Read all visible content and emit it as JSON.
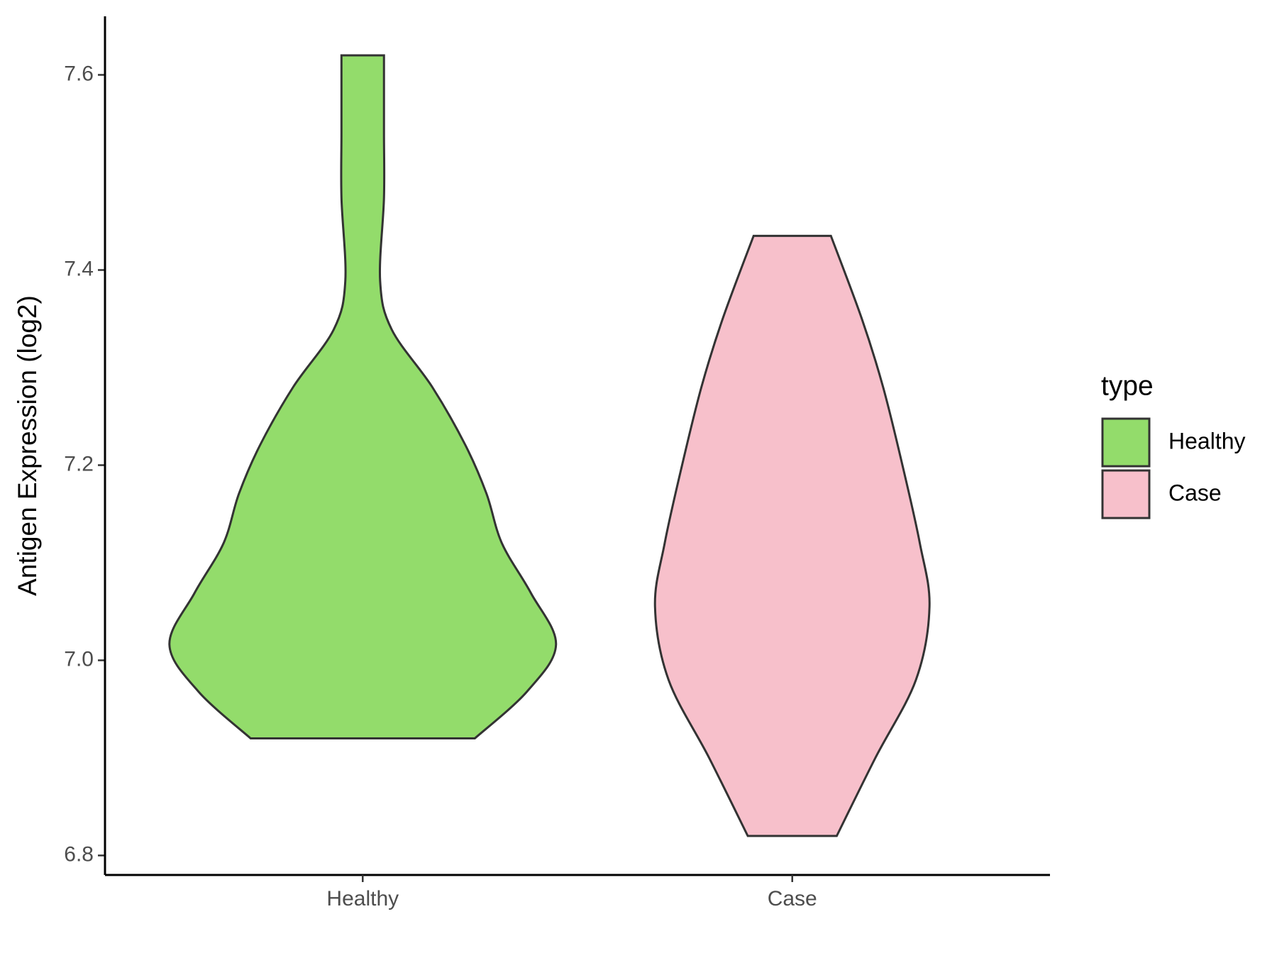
{
  "chart_data": {
    "type": "violin",
    "y_label": "Antigen Expression (log2)",
    "categories": [
      "Healthy",
      "Case"
    ],
    "series": [
      {
        "name": "Healthy",
        "color": "#93dc6b",
        "y": [
          7.62,
          7.541,
          7.474,
          7.389,
          7.339,
          7.28,
          7.221,
          7.171,
          7.12,
          7.069,
          7.016,
          6.968,
          6.92
        ],
        "density": [
          0.11,
          0.11,
          0.11,
          0.09,
          0.15,
          0.36,
          0.53,
          0.64,
          0.72,
          0.87,
          1.0,
          0.85,
          0.58
        ]
      },
      {
        "name": "Case",
        "color": "#f7c0cb",
        "y": [
          7.435,
          7.35,
          7.28,
          7.2,
          7.12,
          7.055,
          6.98,
          6.9,
          6.82
        ],
        "density": [
          0.2,
          0.36,
          0.47,
          0.57,
          0.66,
          0.71,
          0.64,
          0.43,
          0.23
        ]
      }
    ],
    "ylim": [
      6.78,
      7.66
    ],
    "yticks": [
      {
        "value": 6.8,
        "label": "6.8"
      },
      {
        "value": 7.0,
        "label": "7.0"
      },
      {
        "value": 7.2,
        "label": "7.2"
      },
      {
        "value": 7.4,
        "label": "7.4"
      },
      {
        "value": 7.6,
        "label": "7.6"
      }
    ],
    "legend_title": "type",
    "legend_position": "right"
  }
}
